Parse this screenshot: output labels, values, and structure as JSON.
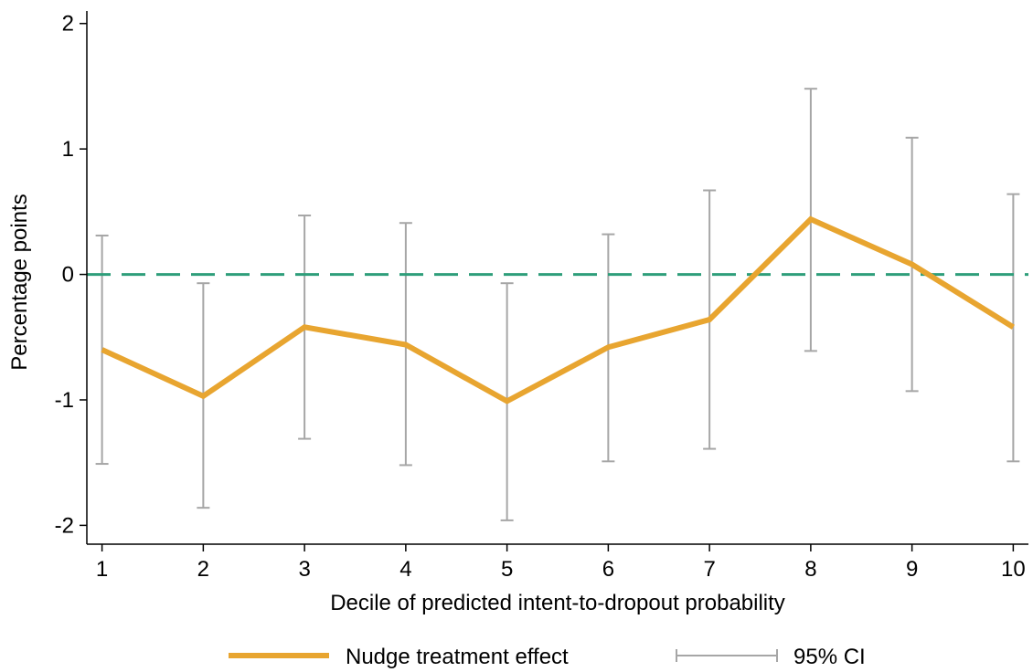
{
  "chart_data": {
    "type": "line",
    "title": "",
    "xlabel": "Decile of predicted intent-to-dropout probability",
    "ylabel": "Percentage points",
    "x": [
      1,
      2,
      3,
      4,
      5,
      6,
      7,
      8,
      9,
      10
    ],
    "x_tick_labels": [
      "1",
      "2",
      "3",
      "4",
      "5",
      "6",
      "7",
      "8",
      "9",
      "10"
    ],
    "y_ticks": [
      -2,
      -1,
      0,
      1,
      2
    ],
    "y_tick_labels": [
      "-2",
      "-1",
      "0",
      "1",
      "2"
    ],
    "ylim": [
      -2.15,
      2.1
    ],
    "xlim": [
      0.85,
      10.15
    ],
    "series": [
      {
        "name": "Nudge treatment effect",
        "color": "#E8A530",
        "values": [
          -0.6,
          -0.97,
          -0.42,
          -0.56,
          -1.01,
          -0.58,
          -0.36,
          0.44,
          0.08,
          -0.42
        ]
      }
    ],
    "confidence_interval": {
      "name": "95% CI",
      "color": "#A6A6A6",
      "lower": [
        -1.51,
        -1.86,
        -1.31,
        -1.52,
        -1.96,
        -1.49,
        -1.39,
        -0.61,
        -0.93,
        -1.49
      ],
      "upper": [
        0.31,
        -0.07,
        0.47,
        0.41,
        -0.07,
        0.32,
        0.67,
        1.48,
        1.09,
        0.64
      ]
    },
    "reference_line": {
      "y": 0,
      "style": "dashed",
      "color": "#2E9E7A"
    },
    "grid": false,
    "legend": {
      "position": "bottom-center",
      "entries": [
        "Nudge treatment effect",
        "95% CI"
      ]
    }
  }
}
